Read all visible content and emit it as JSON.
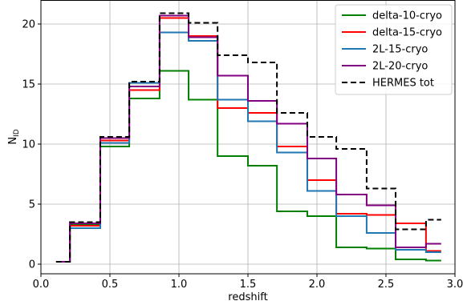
{
  "chart_data": {
    "type": "line",
    "drawstyle": "steps",
    "xlabel": "redshift",
    "ylabel_main": "N",
    "ylabel_sub": "ID",
    "xlim": [
      0.0,
      3.0
    ],
    "ylim": [
      -0.8,
      22.0
    ],
    "xticks": [
      0.0,
      0.5,
      1.0,
      1.5,
      2.0,
      2.5,
      3.0
    ],
    "xtick_labels": [
      "0.0",
      "0.5",
      "1.0",
      "1.5",
      "2.0",
      "2.5",
      "3.0"
    ],
    "yticks": [
      0,
      5,
      10,
      15,
      20
    ],
    "ytick_labels": [
      "0",
      "5",
      "10",
      "15",
      "20"
    ],
    "grid": true,
    "legend_position": "top-right",
    "bin_edges": [
      0.11,
      0.21,
      0.43,
      0.64,
      0.86,
      1.07,
      1.28,
      1.5,
      1.71,
      1.93,
      2.14,
      2.36,
      2.57,
      2.79,
      2.9
    ],
    "series": [
      {
        "name": "delta-10-cryo",
        "color": "#008000",
        "dash": "solid",
        "values": [
          0.2,
          3.3,
          9.8,
          13.8,
          16.1,
          13.7,
          9.0,
          8.2,
          4.4,
          4.0,
          1.4,
          1.3,
          0.4,
          0.3
        ]
      },
      {
        "name": "delta-15-cryo",
        "color": "#ff0000",
        "dash": "solid",
        "values": [
          0.2,
          3.2,
          10.3,
          14.5,
          20.5,
          19.0,
          13.0,
          12.6,
          9.8,
          7.0,
          4.2,
          4.1,
          3.4,
          1.1
        ]
      },
      {
        "name": "2L-15-cryo",
        "color": "#1f77b4",
        "dash": "solid",
        "values": [
          0.2,
          3.0,
          10.1,
          15.1,
          19.3,
          18.6,
          13.7,
          11.9,
          9.3,
          6.1,
          4.0,
          2.6,
          1.2,
          1.0
        ]
      },
      {
        "name": "2L-20-cryo",
        "color": "#800080",
        "dash": "solid",
        "values": [
          0.2,
          3.4,
          10.5,
          14.8,
          20.7,
          18.9,
          15.7,
          13.6,
          11.7,
          8.8,
          5.8,
          4.9,
          1.4,
          1.7
        ]
      },
      {
        "name": "HERMES tot",
        "color": "#000000",
        "dash": "dashed",
        "values": [
          0.2,
          3.5,
          10.6,
          15.2,
          20.9,
          20.1,
          17.4,
          16.8,
          12.6,
          10.6,
          9.6,
          6.3,
          2.9,
          3.7
        ]
      }
    ]
  }
}
